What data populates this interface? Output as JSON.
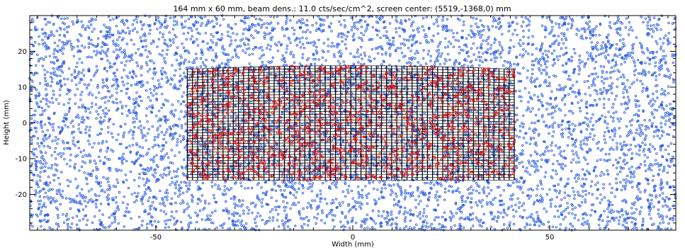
{
  "chart_data": {
    "type": "scatter",
    "title": "164 mm x 60 mm, beam dens.: 11.0 cts/sec/cm^2, screen center: (5519,-1368,0) mm",
    "xlabel": "Width (mm)",
    "ylabel": "Height (mm)",
    "xlim": [
      -82,
      82
    ],
    "ylim": [
      -30,
      30
    ],
    "xticks": [
      -50,
      0,
      50
    ],
    "yticks": [
      -20,
      -10,
      0,
      10,
      20
    ],
    "x_tick_labels": [
      "-50",
      "0",
      "50"
    ],
    "y_tick_labels": [
      "-20",
      "-10",
      "0",
      "10",
      "20"
    ],
    "grid": false,
    "detector_region": {
      "x_range": [
        -42,
        41
      ],
      "y_bottom": -16,
      "y_top_left": 15,
      "y_top_center": 16,
      "y_top_right": 15,
      "columns": 64,
      "rows": 40
    },
    "series": [
      {
        "color": "#2255dd",
        "marker": "open-circle",
        "region": "whole screen",
        "count": 6500
      },
      {
        "color": "#dd1111",
        "marker": "open-circle",
        "region": "detector area",
        "count": 1400
      }
    ]
  },
  "colors": {
    "frame": "#000000",
    "grid_lines": "#000000"
  }
}
